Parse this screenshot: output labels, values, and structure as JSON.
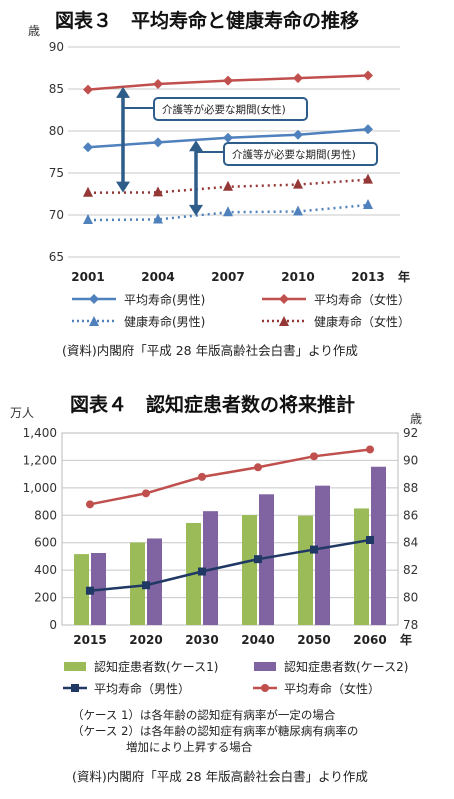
{
  "chart_data": [
    {
      "type": "line",
      "title": "図表３　平均寿命と健康寿命の推移",
      "y_unit": "歳",
      "x_unit": "年",
      "x": [
        "2001",
        "2004",
        "2007",
        "2010",
        "2013"
      ],
      "ylim": [
        65,
        90
      ],
      "yticks": [
        65,
        70,
        75,
        80,
        85,
        90
      ],
      "grid": true,
      "series": [
        {
          "name": "平均寿命(男性)",
          "values": [
            78.07,
            78.64,
            79.19,
            79.55,
            80.21
          ],
          "color": "#4f81bd",
          "style": "solid",
          "marker": "diamond"
        },
        {
          "name": "平均寿命（女性）",
          "values": [
            84.93,
            85.59,
            85.99,
            86.3,
            86.61
          ],
          "color": "#c0504d",
          "style": "solid",
          "marker": "diamond"
        },
        {
          "name": "健康寿命(男性)",
          "values": [
            69.4,
            69.47,
            70.33,
            70.42,
            71.19
          ],
          "color": "#4f81bd",
          "style": "dotted",
          "marker": "triangle"
        },
        {
          "name": "健康寿命（女性）",
          "values": [
            72.65,
            72.69,
            73.36,
            73.62,
            74.21
          ],
          "color": "#953735",
          "style": "dotted",
          "marker": "triangle"
        }
      ],
      "annotations": [
        "介護等が必要な期間(女性)",
        "介護等が必要な期間(男性)"
      ],
      "source": "(資料)内閣府「平成 28 年版高齢社会白書」より作成"
    },
    {
      "type": "bar",
      "title": "図表４　認知症患者数の将来推計",
      "y_unit_left": "万人",
      "y_unit_right": "歳",
      "x_unit": "年",
      "categories": [
        "2015",
        "2020",
        "2030",
        "2040",
        "2050",
        "2060"
      ],
      "ylim_left": [
        0,
        1400
      ],
      "yticks_left": [
        "0",
        "200",
        "400",
        "600",
        "800",
        "1,000",
        "1,200",
        "1,400"
      ],
      "ylim_right": [
        78,
        92
      ],
      "yticks_right": [
        78,
        80,
        82,
        84,
        86,
        88,
        90,
        92
      ],
      "grid": true,
      "bar_series": [
        {
          "name": "認知症患者数(ケース1)",
          "values": [
            517,
            602,
            744,
            802,
            797,
            850
          ],
          "color": "#9bbb59"
        },
        {
          "name": "認知症患者数(ケース2)",
          "values": [
            525,
            631,
            830,
            953,
            1016,
            1154
          ],
          "color": "#8064a2"
        }
      ],
      "line_series": [
        {
          "name": "平均寿命（男性）",
          "values": [
            80.5,
            80.9,
            81.9,
            82.8,
            83.5,
            84.2
          ],
          "color": "#1f3864",
          "marker": "square"
        },
        {
          "name": "平均寿命（女性）",
          "values": [
            86.8,
            87.6,
            88.8,
            89.5,
            90.3,
            90.8
          ],
          "color": "#c0504d",
          "marker": "circle"
        }
      ],
      "notes": [
        "（ケース 1）は各年齢の認知症有病率が一定の場合",
        "（ケース 2）は各年齢の認知症有病率が糖尿病有病率の",
        "増加により上昇する場合"
      ],
      "source": "(資料)内閣府「平成 28 年版高齢社会白書」より作成"
    }
  ]
}
